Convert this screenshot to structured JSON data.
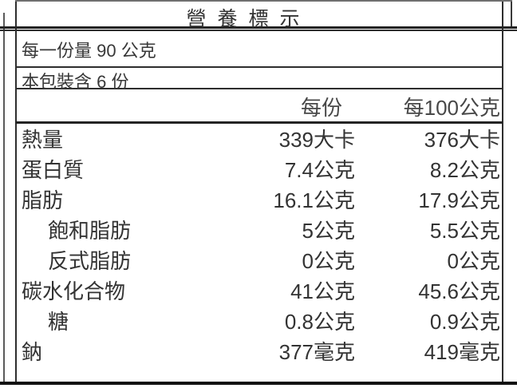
{
  "label": {
    "title": "營養標示",
    "serving_size_line": "每一份量 90 公克",
    "servings_per_package_line": "本包裝含 6 份",
    "columns": {
      "per_serving": "每份",
      "per_100g": "每100公克"
    },
    "rows": [
      {
        "name": "熱量",
        "indent": false,
        "per_serving": "339大卡",
        "per_100g": "376大卡"
      },
      {
        "name": "蛋白質",
        "indent": false,
        "per_serving": "7.4公克",
        "per_100g": "8.2公克"
      },
      {
        "name": "脂肪",
        "indent": false,
        "per_serving": "16.1公克",
        "per_100g": "17.9公克"
      },
      {
        "name": "飽和脂肪",
        "indent": true,
        "per_serving": "5公克",
        "per_100g": "5.5公克"
      },
      {
        "name": "反式脂肪",
        "indent": true,
        "per_serving": "0公克",
        "per_100g": "0公克"
      },
      {
        "name": "碳水化合物",
        "indent": false,
        "per_serving": "41公克",
        "per_100g": "45.6公克"
      },
      {
        "name": "糖",
        "indent": true,
        "per_serving": "0.8公克",
        "per_100g": "0.9公克"
      },
      {
        "name": "鈉",
        "indent": false,
        "per_serving": "377毫克",
        "per_100g": "419毫克"
      }
    ]
  },
  "colors": {
    "ink": "#333333",
    "rule": "#2e2e2e",
    "heavy_rule": "#101010",
    "background": "#ffffff"
  }
}
